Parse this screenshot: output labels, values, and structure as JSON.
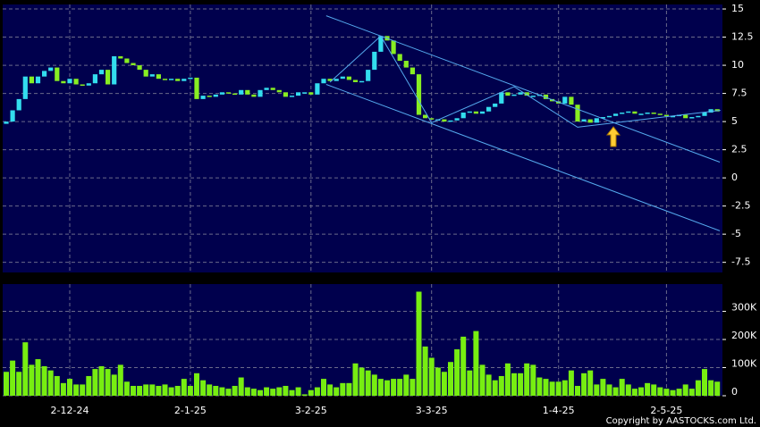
{
  "chart_data": {
    "type": "candlestick",
    "categories": [
      null,
      null,
      null,
      null,
      null,
      null,
      null,
      null,
      null,
      null,
      "2-12-24",
      null,
      null,
      null,
      null,
      null,
      null,
      null,
      null,
      null,
      null,
      null,
      null,
      null,
      null,
      null,
      null,
      null,
      null,
      "2-1-25",
      null,
      null,
      null,
      null,
      null,
      null,
      null,
      null,
      null,
      null,
      null,
      null,
      null,
      null,
      null,
      null,
      null,
      null,
      "3-2-25",
      null,
      null,
      null,
      null,
      null,
      null,
      null,
      null,
      null,
      null,
      null,
      null,
      null,
      null,
      null,
      null,
      null,
      null,
      "3-3-25",
      null,
      null,
      null,
      null,
      null,
      null,
      null,
      null,
      null,
      null,
      null,
      null,
      null,
      null,
      null,
      null,
      null,
      null,
      null,
      "1-4-25",
      null,
      null,
      null,
      null,
      null,
      null,
      null,
      null,
      null,
      null,
      null,
      null,
      null,
      null,
      null,
      null,
      "2-5-25",
      null,
      null,
      null,
      null,
      null,
      null,
      null,
      null
    ],
    "open": [
      4.8,
      5.0,
      6.0,
      7.0,
      9.0,
      8.4,
      9.0,
      9.5,
      9.8,
      8.6,
      8.4,
      8.8,
      8.3,
      8.2,
      8.4,
      9.2,
      9.6,
      8.3,
      10.8,
      10.6,
      10.2,
      10.0,
      9.6,
      9.0,
      9.2,
      8.8,
      8.7,
      8.8,
      8.6,
      8.8,
      8.9,
      7.0,
      7.3,
      7.2,
      7.4,
      7.6,
      7.5,
      7.4,
      7.8,
      7.4,
      7.2,
      7.8,
      8.0,
      7.8,
      7.6,
      7.2,
      7.3,
      7.6,
      7.6,
      7.4,
      8.4,
      8.8,
      8.6,
      8.8,
      9.0,
      8.7,
      8.5,
      8.6,
      9.6,
      11.2,
      12.6,
      12.2,
      11.0,
      10.4,
      9.8,
      9.2,
      5.6,
      5.3,
      5.2,
      5.2,
      5.0,
      5.1,
      5.3,
      5.8,
      5.9,
      5.7,
      5.9,
      6.3,
      6.6,
      7.6,
      7.3,
      7.4,
      7.6,
      7.3,
      7.3,
      7.4,
      7.0,
      6.8,
      6.6,
      7.2,
      6.5,
      5.0,
      5.2,
      4.9,
      5.3,
      5.4,
      5.5,
      5.7,
      5.8,
      5.9,
      5.7,
      5.7,
      5.8,
      5.7,
      5.6,
      5.5,
      5.5,
      5.6,
      5.3,
      5.4,
      5.5,
      5.8,
      6.1
    ],
    "close": [
      5.0,
      6.0,
      7.0,
      9.0,
      8.4,
      9.0,
      9.5,
      9.8,
      8.6,
      8.4,
      8.8,
      8.3,
      8.2,
      8.4,
      9.2,
      9.6,
      8.3,
      10.8,
      10.6,
      10.2,
      10.0,
      9.6,
      9.0,
      9.2,
      8.8,
      8.7,
      8.8,
      8.6,
      8.8,
      8.9,
      7.0,
      7.3,
      7.2,
      7.4,
      7.6,
      7.5,
      7.4,
      7.8,
      7.4,
      7.2,
      7.8,
      8.0,
      7.8,
      7.6,
      7.2,
      7.3,
      7.6,
      7.6,
      7.4,
      8.4,
      8.8,
      8.6,
      8.8,
      9.0,
      8.7,
      8.5,
      8.6,
      9.6,
      11.2,
      12.6,
      12.2,
      11.0,
      10.4,
      9.8,
      9.2,
      5.6,
      5.3,
      5.2,
      5.2,
      5.0,
      5.1,
      5.3,
      5.8,
      5.9,
      5.7,
      5.9,
      6.3,
      6.6,
      7.6,
      7.3,
      7.4,
      7.6,
      7.3,
      7.3,
      7.4,
      7.0,
      6.8,
      6.6,
      7.2,
      6.5,
      5.0,
      5.2,
      4.9,
      5.3,
      5.4,
      5.5,
      5.7,
      5.8,
      5.9,
      5.7,
      5.7,
      5.8,
      5.7,
      5.6,
      5.5,
      5.5,
      5.6,
      5.3,
      5.4,
      5.5,
      5.8,
      6.1,
      5.9
    ],
    "volume": [
      85000,
      125000,
      85000,
      190000,
      110000,
      130000,
      105000,
      90000,
      70000,
      45000,
      60000,
      40000,
      40000,
      70000,
      95000,
      105000,
      95000,
      75000,
      110000,
      50000,
      35000,
      35000,
      40000,
      40000,
      35000,
      40000,
      30000,
      35000,
      60000,
      35000,
      80000,
      55000,
      40000,
      35000,
      30000,
      25000,
      35000,
      65000,
      30000,
      25000,
      20000,
      30000,
      25000,
      30000,
      35000,
      20000,
      30000,
      5000,
      20000,
      30000,
      60000,
      40000,
      30000,
      45000,
      45000,
      115000,
      100000,
      90000,
      75000,
      60000,
      55000,
      60000,
      60000,
      75000,
      60000,
      370000,
      175000,
      135000,
      100000,
      85000,
      120000,
      165000,
      210000,
      90000,
      230000,
      110000,
      75000,
      55000,
      70000,
      115000,
      80000,
      80000,
      115000,
      110000,
      65000,
      60000,
      50000,
      50000,
      55000,
      90000,
      35000,
      80000,
      90000,
      40000,
      60000,
      40000,
      30000,
      60000,
      40000,
      25000,
      30000,
      45000,
      40000,
      30000,
      25000,
      20000,
      25000,
      40000,
      25000,
      55000,
      95000,
      55000,
      50000
    ],
    "ylim": [
      -8.4,
      15.4
    ],
    "yticks": [
      15,
      12.5,
      10,
      7.5,
      5,
      2.5,
      0,
      -2.5,
      -5,
      -7.5
    ],
    "volume_lim": [
      0,
      397000
    ],
    "volume_ticks": [
      {
        "value": 300000,
        "label": "300K"
      },
      {
        "value": 200000,
        "label": "200K"
      },
      {
        "value": 100000,
        "label": "100K"
      },
      0
    ],
    "up_color": "#33ddee",
    "down_color": "#88ee22",
    "volume_color": "#77ee11",
    "trendline_color": "#55aaee",
    "trendlines": [
      [
        [
          50.4,
          14.4
        ],
        [
          112.4,
          1.4
        ]
      ],
      [
        [
          50.4,
          8.3
        ],
        [
          112.4,
          -4.7
        ]
      ],
      [
        [
          51,
          8.5
        ],
        [
          59,
          12.6
        ],
        [
          67,
          4.9
        ],
        [
          80,
          8.1
        ],
        [
          90,
          4.5
        ],
        [
          112.5,
          6.0
        ]
      ]
    ],
    "grid": true,
    "copyright": "Copyright by AASTOCKS.com Ltd."
  }
}
